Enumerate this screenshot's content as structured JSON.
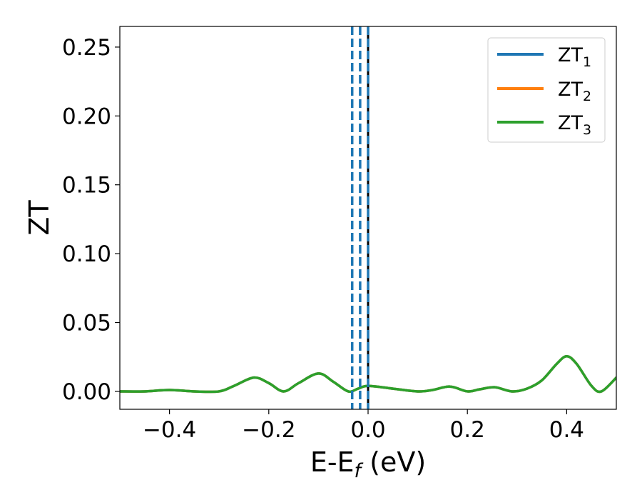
{
  "chart_data": {
    "type": "line",
    "xlabel": "E-E",
    "xlabel_sub": "f",
    "xlabel_unit": " (eV)",
    "ylabel": "ZT",
    "xlim": [
      -0.5,
      0.5
    ],
    "ylim": [
      -0.013,
      0.265
    ],
    "xticks": [
      -0.4,
      -0.2,
      0.0,
      0.2,
      0.4
    ],
    "xtick_labels": [
      "−0.4",
      "−0.2",
      "0.0",
      "0.2",
      "0.4"
    ],
    "yticks": [
      0.0,
      0.05,
      0.1,
      0.15,
      0.2,
      0.25
    ],
    "ytick_labels": [
      "0.00",
      "0.05",
      "0.10",
      "0.15",
      "0.20",
      "0.25"
    ],
    "grid": false,
    "legend_position": "top-right",
    "series": [
      {
        "name": "ZT",
        "name_sub": "1",
        "color": "#1f77b4",
        "x": [
          -0.5,
          -0.45,
          -0.4,
          -0.35,
          -0.3,
          -0.27,
          -0.23,
          -0.2,
          -0.17,
          -0.14,
          -0.1,
          -0.07,
          -0.04,
          -0.02,
          0.0,
          0.05,
          0.1,
          0.13,
          0.165,
          0.2,
          0.225,
          0.255,
          0.29,
          0.32,
          0.35,
          0.38,
          0.4,
          0.42,
          0.45,
          0.47,
          0.5
        ],
        "y": [
          0.0,
          0.0,
          0.001,
          0.0,
          0.0,
          0.004,
          0.01,
          0.006,
          0.0,
          0.006,
          0.013,
          0.007,
          0.0,
          0.002,
          0.004,
          0.002,
          0.0,
          0.001,
          0.0035,
          0.0,
          0.0015,
          0.003,
          0.0,
          0.002,
          0.008,
          0.02,
          0.0255,
          0.02,
          0.004,
          0.0,
          0.01
        ]
      },
      {
        "name": "ZT",
        "name_sub": "2",
        "color": "#ff7f0e",
        "x": [
          -0.5,
          -0.45,
          -0.4,
          -0.35,
          -0.3,
          -0.27,
          -0.23,
          -0.2,
          -0.17,
          -0.14,
          -0.1,
          -0.07,
          -0.04,
          -0.02,
          0.0,
          0.05,
          0.1,
          0.13,
          0.165,
          0.2,
          0.225,
          0.255,
          0.29,
          0.32,
          0.35,
          0.38,
          0.4,
          0.42,
          0.45,
          0.47,
          0.5
        ],
        "y": [
          0.0,
          0.0,
          0.001,
          0.0,
          0.0,
          0.004,
          0.01,
          0.006,
          0.0,
          0.006,
          0.013,
          0.007,
          0.0,
          0.002,
          0.004,
          0.002,
          0.0,
          0.001,
          0.0035,
          0.0,
          0.0015,
          0.003,
          0.0,
          0.002,
          0.008,
          0.02,
          0.0255,
          0.02,
          0.004,
          0.0,
          0.01
        ]
      },
      {
        "name": "ZT",
        "name_sub": "3",
        "color": "#2ca02c",
        "x": [
          -0.5,
          -0.45,
          -0.4,
          -0.35,
          -0.3,
          -0.27,
          -0.23,
          -0.2,
          -0.17,
          -0.14,
          -0.1,
          -0.07,
          -0.04,
          -0.02,
          0.0,
          0.05,
          0.1,
          0.13,
          0.165,
          0.2,
          0.225,
          0.255,
          0.29,
          0.32,
          0.35,
          0.38,
          0.4,
          0.42,
          0.45,
          0.47,
          0.5
        ],
        "y": [
          0.0,
          0.0,
          0.001,
          0.0,
          0.0,
          0.004,
          0.01,
          0.006,
          0.0,
          0.006,
          0.013,
          0.007,
          0.0,
          0.002,
          0.004,
          0.002,
          0.0,
          0.001,
          0.0035,
          0.0,
          0.0015,
          0.003,
          0.0,
          0.002,
          0.008,
          0.02,
          0.0255,
          0.02,
          0.004,
          0.0,
          0.01
        ]
      }
    ],
    "vlines": [
      {
        "x": -0.032,
        "style": "dashed",
        "color": "#1f77b4"
      },
      {
        "x": -0.016,
        "style": "dashed",
        "color": "#1f77b4"
      },
      {
        "x": 0.0,
        "style": "solid",
        "color": "#000000"
      },
      {
        "x": 0.0,
        "style": "dashed",
        "color": "#1f77b4"
      }
    ]
  }
}
